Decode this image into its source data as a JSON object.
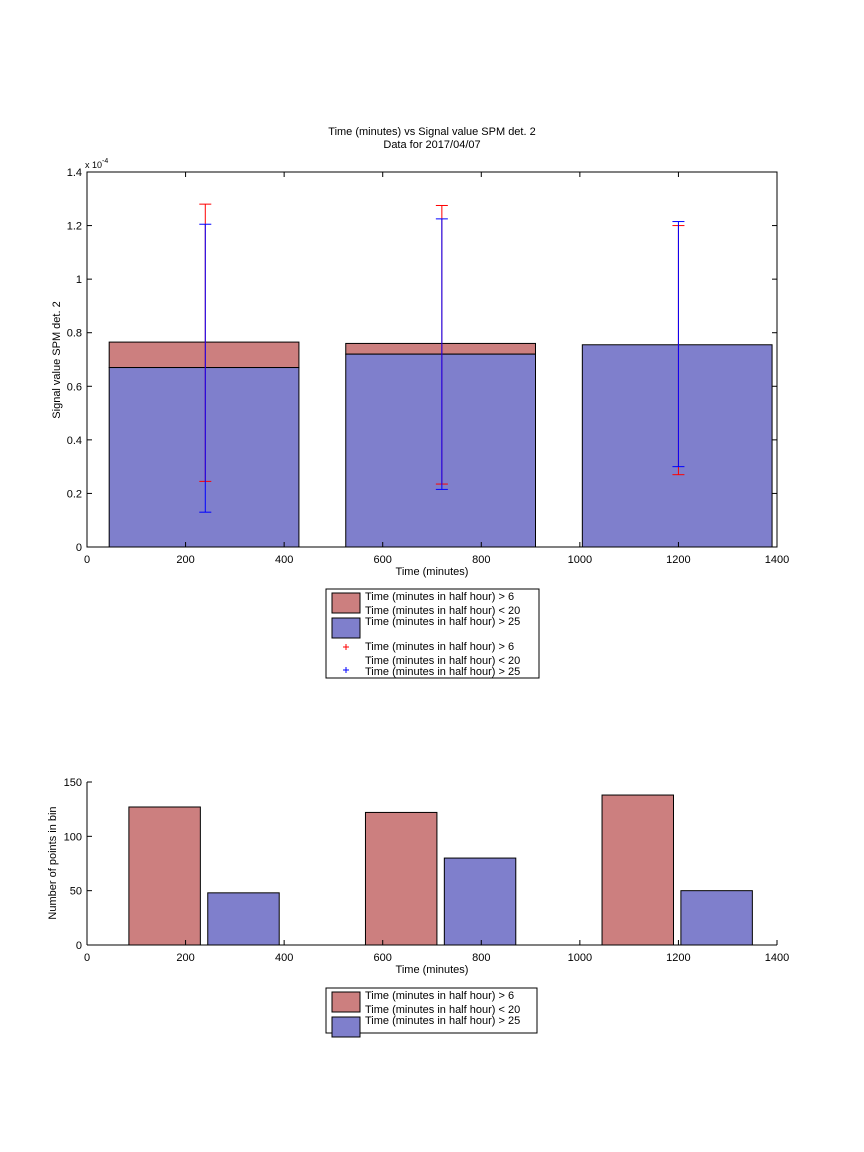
{
  "colors": {
    "red_fill": "#CC7F7F",
    "blue_fill": "#7F7FCC",
    "red_err": "#FF0000",
    "blue_err": "#0000FF",
    "axis": "#000000"
  },
  "chart_data": [
    {
      "type": "bar",
      "stacked": true,
      "title": "Time (minutes) vs Signal value SPM det. 2",
      "subtitle": "Data for 2017/04/07",
      "xlabel": "Time (minutes)",
      "ylabel": "Signal value SPM det. 2",
      "y_exponent_label": "x 10",
      "y_exponent": "-4",
      "xlim": [
        0,
        1400
      ],
      "ylim": [
        0,
        1.4
      ],
      "xticks": [
        "0",
        "200",
        "400",
        "600",
        "800",
        "1000",
        "1200",
        "1400"
      ],
      "yticks": [
        "0",
        "0.2",
        "0.4",
        "0.6",
        "0.8",
        "1",
        "1.2",
        "1.4"
      ],
      "bars": [
        {
          "x_start": 45,
          "x_end": 430,
          "blue": 0.67,
          "red": 0.765
        },
        {
          "x_start": 525,
          "x_end": 910,
          "blue": 0.72,
          "red": 0.76
        },
        {
          "x_start": 1005,
          "x_end": 1390,
          "blue": 0.755,
          "red": 0.755
        }
      ],
      "series": [
        {
          "name": "Time (minutes in half hour) > 6 Time (minutes in half hour) < 20",
          "color": "#FF0000",
          "x": [
            240,
            720,
            1200
          ],
          "y_low": [
            0.245,
            0.235,
            0.27
          ],
          "y_high": [
            1.28,
            1.275,
            1.2
          ]
        },
        {
          "name": "Time (minutes in half hour) > 25",
          "color": "#0000FF",
          "x": [
            240,
            720,
            1200
          ],
          "y_low": [
            0.13,
            0.215,
            0.3
          ],
          "y_high": [
            1.205,
            1.225,
            1.215
          ]
        }
      ],
      "legend_items": [
        {
          "line1": "Time (minutes in half hour) > 6",
          "line2": "Time (minutes in half hour) < 20",
          "kind": "patch",
          "color": "#CC7F7F"
        },
        {
          "line1": "Time (minutes in half hour) > 25",
          "line2": "",
          "kind": "patch",
          "color": "#7F7FCC"
        },
        {
          "line1": "Time (minutes in half hour) > 6",
          "line2": "Time (minutes in half hour) < 20",
          "kind": "marker",
          "color": "#FF0000"
        },
        {
          "line1": "Time (minutes in half hour) > 25",
          "line2": "",
          "kind": "marker",
          "color": "#0000FF"
        }
      ],
      "legend_position": "below"
    },
    {
      "type": "bar",
      "grouped": true,
      "title": "",
      "xlabel": "Time (minutes)",
      "ylabel": "Number of points in bin",
      "xlim": [
        0,
        1400
      ],
      "ylim": [
        0,
        150
      ],
      "xticks": [
        "0",
        "200",
        "400",
        "600",
        "800",
        "1000",
        "1200",
        "1400"
      ],
      "yticks": [
        "0",
        "50",
        "100",
        "150"
      ],
      "series": [
        {
          "name": "Time (minutes in half hour) > 6 Time (minutes in half hour) < 20",
          "color": "#CC7F7F",
          "x_start": [
            85,
            565,
            1045
          ],
          "x_end": [
            230,
            710,
            1190
          ],
          "values": [
            127,
            122,
            138
          ]
        },
        {
          "name": "Time (minutes in half hour) > 25",
          "color": "#7F7FCC",
          "x_start": [
            245,
            725,
            1205
          ],
          "x_end": [
            390,
            870,
            1350
          ],
          "values": [
            48,
            80,
            50
          ]
        }
      ],
      "legend_items": [
        {
          "line1": "Time (minutes in half hour) > 6",
          "line2": "Time (minutes in half hour) < 20",
          "kind": "patch",
          "color": "#CC7F7F"
        },
        {
          "line1": "Time (minutes in half hour) > 25",
          "line2": "",
          "kind": "patch",
          "color": "#7F7FCC"
        }
      ],
      "legend_position": "below"
    }
  ]
}
